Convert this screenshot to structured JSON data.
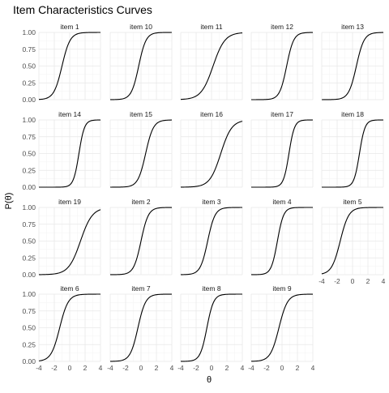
{
  "chart_data": {
    "type": "line",
    "title": "Item Characteristics Curves",
    "xlabel": "θ",
    "ylabel": "P(θ)",
    "xlim": [
      -4,
      4
    ],
    "ylim": [
      0,
      1
    ],
    "x_ticks": [
      "-4",
      "-2",
      "0",
      "2",
      "4"
    ],
    "y_ticks": [
      "0.00",
      "0.25",
      "0.50",
      "0.75",
      "1.00"
    ],
    "grid": true,
    "legend": "none",
    "x": [
      -4,
      -3.5,
      -3,
      -2.5,
      -2,
      -1.5,
      -1,
      -0.5,
      0,
      0.5,
      1,
      1.5,
      2,
      2.5,
      3,
      3.5,
      4
    ],
    "panels": [
      {
        "name": "item 1",
        "b": -1.0,
        "a": 1.9
      },
      {
        "name": "item 10",
        "b": -0.3,
        "a": 2.1
      },
      {
        "name": "item 11",
        "b": 0.2,
        "a": 1.3
      },
      {
        "name": "item 12",
        "b": 0.6,
        "a": 2.2
      },
      {
        "name": "item 13",
        "b": 0.5,
        "a": 2.0
      },
      {
        "name": "item 14",
        "b": 1.2,
        "a": 2.8
      },
      {
        "name": "item 15",
        "b": 0.6,
        "a": 2.0
      },
      {
        "name": "item 16",
        "b": 1.2,
        "a": 1.4
      },
      {
        "name": "item 17",
        "b": 0.9,
        "a": 2.8
      },
      {
        "name": "item 18",
        "b": 0.9,
        "a": 2.8
      },
      {
        "name": "item 19",
        "b": 1.4,
        "a": 1.3
      },
      {
        "name": "item 2",
        "b": 0.0,
        "a": 2.1
      },
      {
        "name": "item 3",
        "b": -0.5,
        "a": 2.1
      },
      {
        "name": "item 4",
        "b": -0.6,
        "a": 2.5
      },
      {
        "name": "item 5",
        "b": -1.6,
        "a": 1.8
      },
      {
        "name": "item 6",
        "b": -1.3,
        "a": 1.8
      },
      {
        "name": "item 7",
        "b": -0.4,
        "a": 2.0
      },
      {
        "name": "item 8",
        "b": -0.6,
        "a": 2.3
      },
      {
        "name": "item 9",
        "b": -0.4,
        "a": 1.8
      }
    ]
  }
}
